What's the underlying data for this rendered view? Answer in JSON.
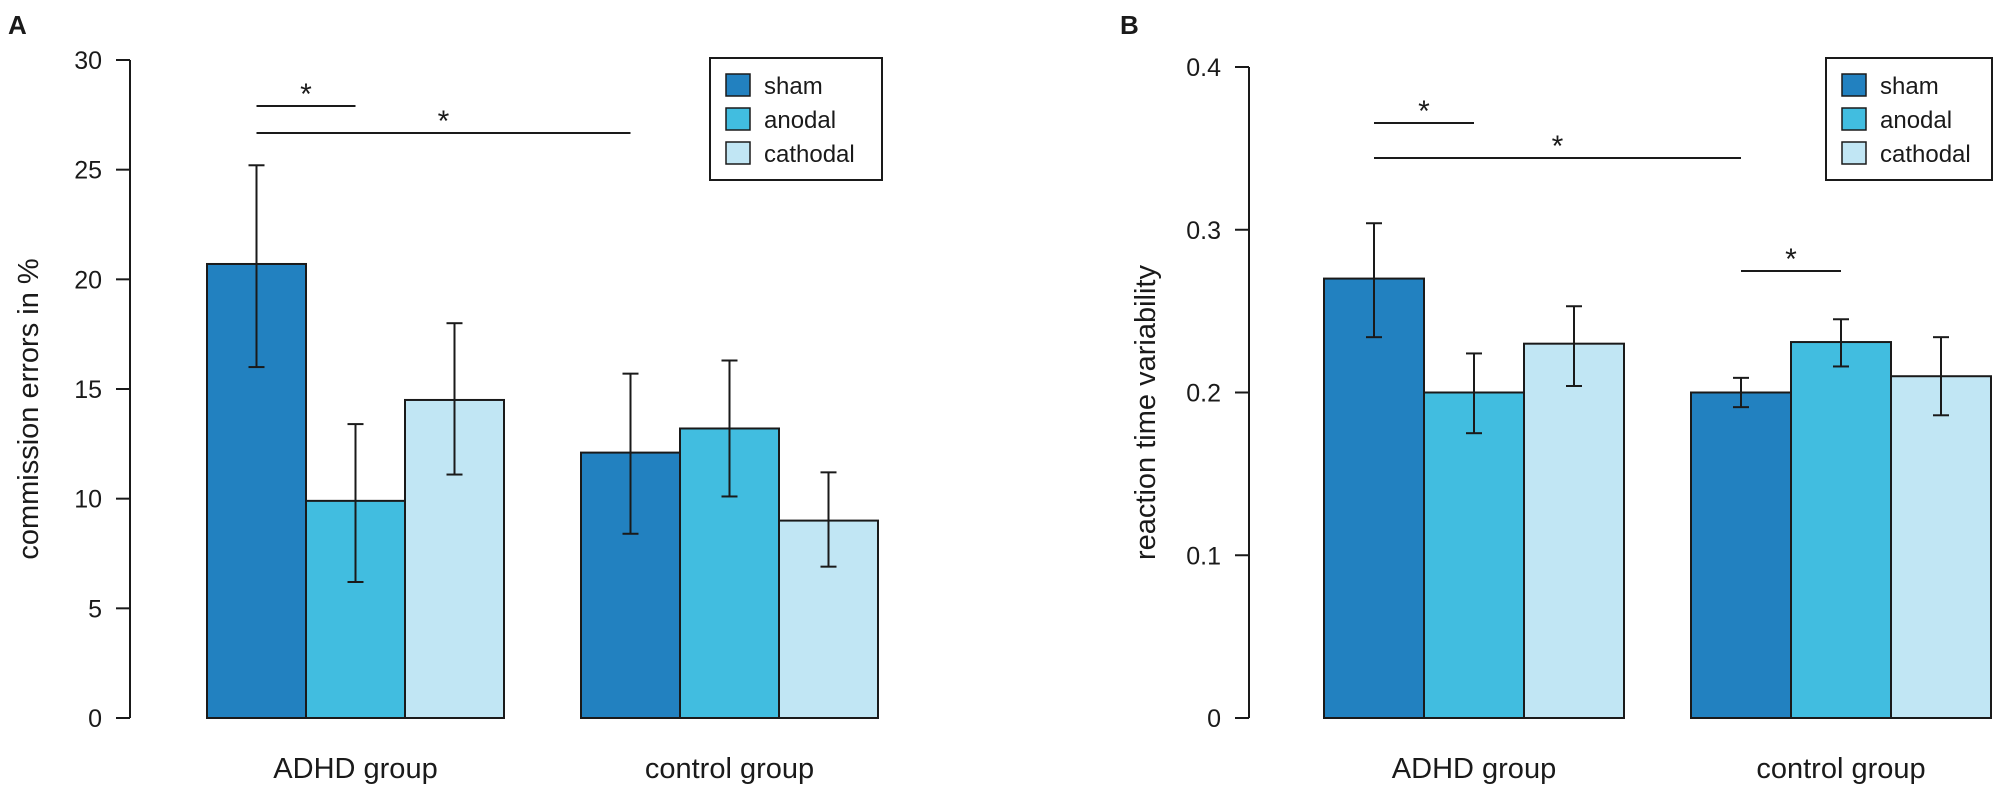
{
  "colors": {
    "sham": "#2281c0",
    "anodal": "#41bde0",
    "cathodal": "#c1e6f4",
    "ink": "#1a1a1a"
  },
  "chart_data": [
    {
      "panel": "A",
      "type": "bar",
      "categories": [
        "ADHD group",
        "control group"
      ],
      "series": [
        {
          "name": "sham",
          "values": [
            20.7,
            12.1
          ],
          "err_low": [
            16.0,
            8.4
          ],
          "err_high": [
            25.2,
            15.7
          ]
        },
        {
          "name": "anodal",
          "values": [
            9.9,
            13.2
          ],
          "err_low": [
            6.2,
            10.1
          ],
          "err_high": [
            13.4,
            16.3
          ]
        },
        {
          "name": "cathodal",
          "values": [
            14.5,
            9.0
          ],
          "err_low": [
            11.1,
            6.9
          ],
          "err_high": [
            18.0,
            11.2
          ]
        }
      ],
      "xlabel": "",
      "ylabel": "commission errors in %",
      "ylim": [
        0,
        30
      ],
      "yticks": [
        0,
        5,
        10,
        15,
        20,
        25,
        30
      ],
      "ytick_labels": [
        "0",
        "5",
        "10",
        "15",
        "20",
        "25",
        "30"
      ],
      "legend_position": "top-right",
      "grid": false,
      "significance": [
        {
          "from": {
            "category": 0,
            "series": 0
          },
          "to": {
            "category": 0,
            "series": 1
          },
          "level": 1,
          "label": "*"
        },
        {
          "from": {
            "category": 0,
            "series": 0
          },
          "to": {
            "category": 1,
            "series": 0
          },
          "level": 0,
          "label": "*"
        }
      ]
    },
    {
      "panel": "B",
      "type": "bar",
      "categories": [
        "ADHD group",
        "control group"
      ],
      "series": [
        {
          "name": "sham",
          "values": [
            0.27,
            0.2
          ],
          "err_low": [
            0.234,
            0.191
          ],
          "err_high": [
            0.304,
            0.209
          ]
        },
        {
          "name": "anodal",
          "values": [
            0.2,
            0.231
          ],
          "err_low": [
            0.175,
            0.216
          ],
          "err_high": [
            0.224,
            0.245
          ]
        },
        {
          "name": "cathodal",
          "values": [
            0.23,
            0.21
          ],
          "err_low": [
            0.204,
            0.186
          ],
          "err_high": [
            0.253,
            0.234
          ]
        }
      ],
      "xlabel": "",
      "ylabel": "reaction time variability",
      "ylim": [
        0,
        0.4
      ],
      "yticks": [
        0,
        0.1,
        0.2,
        0.3,
        0.4
      ],
      "ytick_labels": [
        "0",
        "0.1",
        "0.2",
        "0.3",
        "0.4"
      ],
      "legend_position": "top-right",
      "grid": false,
      "significance": [
        {
          "from": {
            "category": 0,
            "series": 0
          },
          "to": {
            "category": 0,
            "series": 1
          },
          "level": 1,
          "label": "*"
        },
        {
          "from": {
            "category": 0,
            "series": 0
          },
          "to": {
            "category": 1,
            "series": 0
          },
          "level": 0,
          "label": "*"
        },
        {
          "from": {
            "category": 1,
            "series": 0
          },
          "to": {
            "category": 1,
            "series": 1
          },
          "level": 2,
          "label": "*"
        }
      ]
    }
  ]
}
